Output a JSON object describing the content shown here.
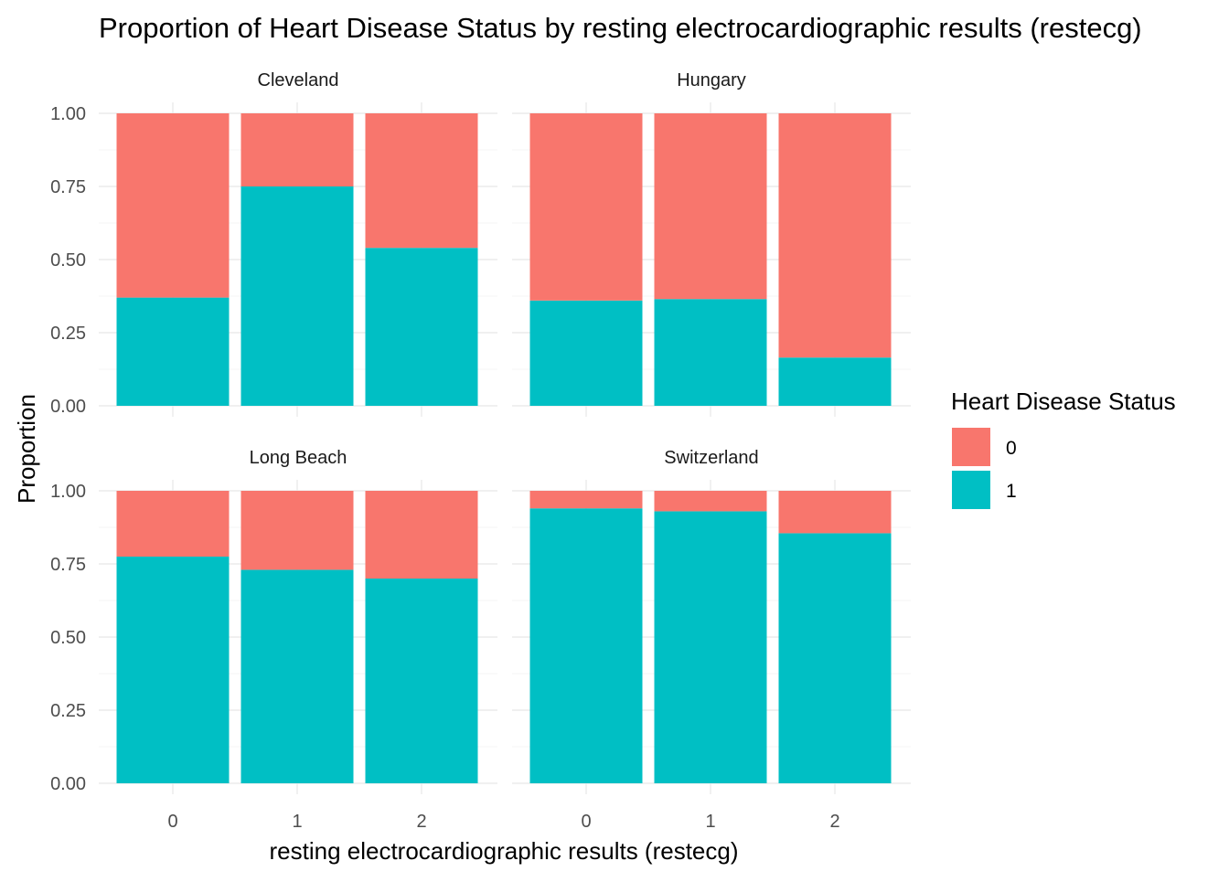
{
  "colors": {
    "status_0": "#F8766D",
    "status_1": "#00BFC4",
    "grid_major": "#ebebeb",
    "grid_minor": "#f5f5f5"
  },
  "chart_data": {
    "type": "bar",
    "stacked": "proportion",
    "title": "Proportion of Heart Disease Status by resting electrocardiographic results (restecg)",
    "xlabel": "resting electrocardiographic results (restecg)",
    "ylabel": "Proportion",
    "categories": [
      "0",
      "1",
      "2"
    ],
    "ylim": [
      0,
      1
    ],
    "y_ticks": [
      "0.00",
      "0.25",
      "0.50",
      "0.75",
      "1.00"
    ],
    "grid": true,
    "legend": {
      "title": "Heart Disease Status",
      "position": "right",
      "entries": [
        {
          "label": "0",
          "color": "#F8766D"
        },
        {
          "label": "1",
          "color": "#00BFC4"
        }
      ]
    },
    "facets": [
      {
        "name": "Cleveland",
        "series": [
          {
            "name": "0",
            "values": [
              0.63,
              0.25,
              0.46
            ]
          },
          {
            "name": "1",
            "values": [
              0.37,
              0.75,
              0.54
            ]
          }
        ]
      },
      {
        "name": "Hungary",
        "series": [
          {
            "name": "0",
            "values": [
              0.64,
              0.635,
              0.835
            ]
          },
          {
            "name": "1",
            "values": [
              0.36,
              0.365,
              0.165
            ]
          }
        ]
      },
      {
        "name": "Long Beach",
        "series": [
          {
            "name": "0",
            "values": [
              0.225,
              0.27,
              0.3
            ]
          },
          {
            "name": "1",
            "values": [
              0.775,
              0.73,
              0.7
            ]
          }
        ]
      },
      {
        "name": "Switzerland",
        "series": [
          {
            "name": "0",
            "values": [
              0.06,
              0.07,
              0.145
            ]
          },
          {
            "name": "1",
            "values": [
              0.94,
              0.93,
              0.855
            ]
          }
        ]
      }
    ]
  }
}
